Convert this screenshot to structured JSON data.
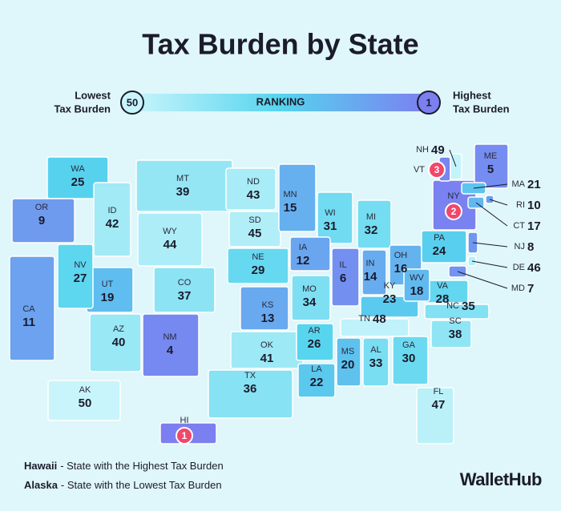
{
  "title": "Tax Burden by State",
  "legend": {
    "low_label": [
      "Lowest",
      "Tax Burden"
    ],
    "low_rank": 50,
    "scale_label": "RANKING",
    "high_rank": 1,
    "high_label": [
      "Highest",
      "Tax Burden"
    ],
    "scale_colors": [
      "#c8f5fb",
      "#56d4ee",
      "#7b7ff0"
    ]
  },
  "states": [
    {
      "abbr": "WA",
      "rank": 25
    },
    {
      "abbr": "OR",
      "rank": 9
    },
    {
      "abbr": "ID",
      "rank": 42
    },
    {
      "abbr": "MT",
      "rank": 39
    },
    {
      "abbr": "WY",
      "rank": 44
    },
    {
      "abbr": "ND",
      "rank": 43
    },
    {
      "abbr": "SD",
      "rank": 45
    },
    {
      "abbr": "NE",
      "rank": 29
    },
    {
      "abbr": "CO",
      "rank": 37
    },
    {
      "abbr": "KS",
      "rank": 13
    },
    {
      "abbr": "OK",
      "rank": 41
    },
    {
      "abbr": "TX",
      "rank": 36
    },
    {
      "abbr": "NM",
      "rank": 4
    },
    {
      "abbr": "AZ",
      "rank": 40
    },
    {
      "abbr": "UT",
      "rank": 19
    },
    {
      "abbr": "NV",
      "rank": 27
    },
    {
      "abbr": "CA",
      "rank": 11
    },
    {
      "abbr": "MN",
      "rank": 15
    },
    {
      "abbr": "WI",
      "rank": 31
    },
    {
      "abbr": "MI",
      "rank": 32
    },
    {
      "abbr": "IA",
      "rank": 12
    },
    {
      "abbr": "IL",
      "rank": 6
    },
    {
      "abbr": "IN",
      "rank": 14
    },
    {
      "abbr": "OH",
      "rank": 16
    },
    {
      "abbr": "MO",
      "rank": 34
    },
    {
      "abbr": "KY",
      "rank": 23
    },
    {
      "abbr": "TN",
      "rank": 48
    },
    {
      "abbr": "AR",
      "rank": 26
    },
    {
      "abbr": "LA",
      "rank": 22
    },
    {
      "abbr": "MS",
      "rank": 20
    },
    {
      "abbr": "AL",
      "rank": 33
    },
    {
      "abbr": "GA",
      "rank": 30
    },
    {
      "abbr": "FL",
      "rank": 47
    },
    {
      "abbr": "SC",
      "rank": 38
    },
    {
      "abbr": "NC",
      "rank": 35
    },
    {
      "abbr": "VA",
      "rank": 28
    },
    {
      "abbr": "WV",
      "rank": 18
    },
    {
      "abbr": "PA",
      "rank": 24
    },
    {
      "abbr": "NY",
      "rank": 2
    },
    {
      "abbr": "VT",
      "rank": 3
    },
    {
      "abbr": "NH",
      "rank": 49
    },
    {
      "abbr": "ME",
      "rank": 5
    },
    {
      "abbr": "MA",
      "rank": 21
    },
    {
      "abbr": "RI",
      "rank": 10
    },
    {
      "abbr": "CT",
      "rank": 17
    },
    {
      "abbr": "NJ",
      "rank": 8
    },
    {
      "abbr": "DE",
      "rank": 46
    },
    {
      "abbr": "MD",
      "rank": 7
    },
    {
      "abbr": "AK",
      "rank": 50
    },
    {
      "abbr": "HI",
      "rank": 1
    }
  ],
  "notes": [
    {
      "name": "Hawaii",
      "text": "- State with the Highest Tax Burden"
    },
    {
      "name": "Alaska",
      "text": "- State with the Lowest Tax Burden"
    }
  ],
  "logo": "WalletHub"
}
